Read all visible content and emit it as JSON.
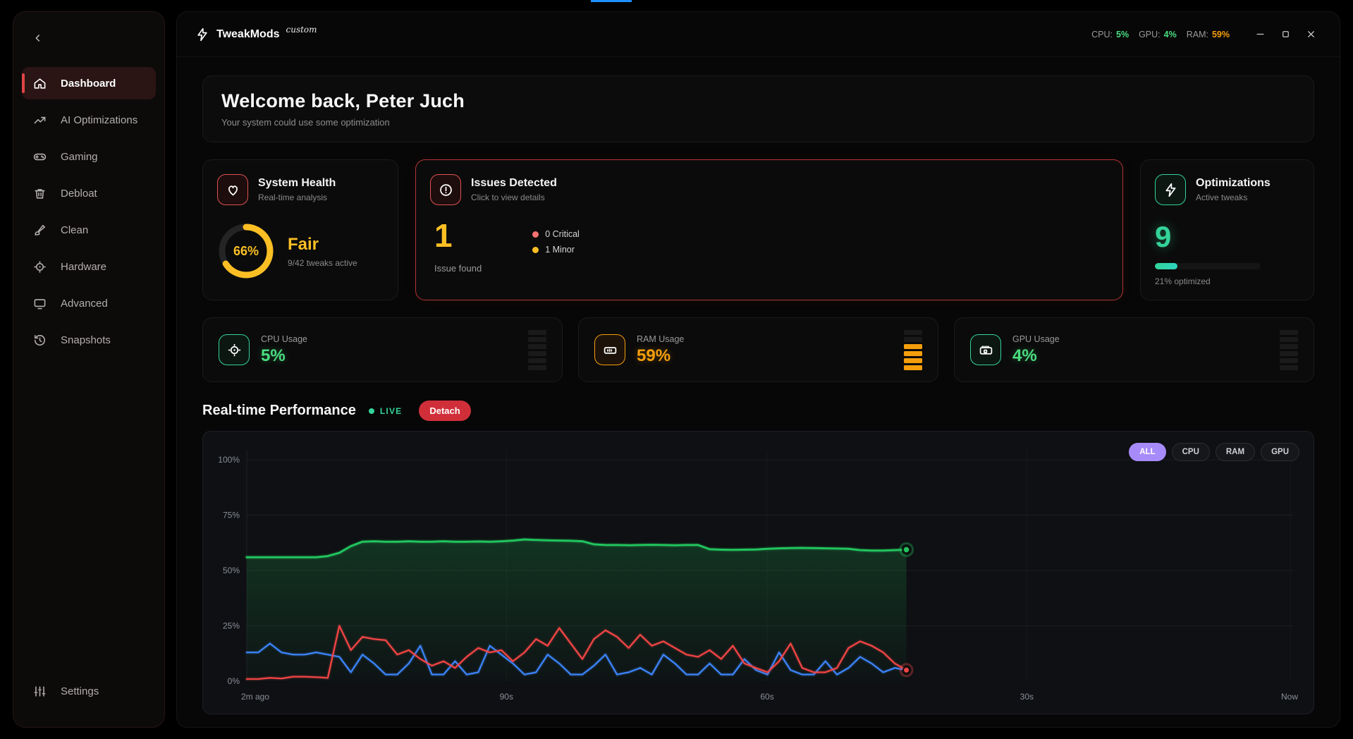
{
  "titlebar": {
    "app_name": "TweakMods",
    "app_badge": "custom",
    "stats": [
      {
        "label": "CPU:",
        "value": "5%",
        "color": "#4ade80"
      },
      {
        "label": "GPU:",
        "value": "4%",
        "color": "#4ade80"
      },
      {
        "label": "RAM:",
        "value": "59%",
        "color": "#f59e0b"
      }
    ]
  },
  "sidebar": {
    "items": [
      {
        "label": "Dashboard",
        "icon": "home-icon",
        "active": true
      },
      {
        "label": "AI Optimizations",
        "icon": "trending-up-icon",
        "active": false
      },
      {
        "label": "Gaming",
        "icon": "gamepad-icon",
        "active": false
      },
      {
        "label": "Debloat",
        "icon": "trash-icon",
        "active": false
      },
      {
        "label": "Clean",
        "icon": "brush-icon",
        "active": false
      },
      {
        "label": "Hardware",
        "icon": "crosshair-icon",
        "active": false
      },
      {
        "label": "Advanced",
        "icon": "monitor-icon",
        "active": false
      },
      {
        "label": "Snapshots",
        "icon": "history-icon",
        "active": false
      }
    ],
    "settings_label": "Settings"
  },
  "welcome": {
    "title": "Welcome back, Peter Juch",
    "subtitle": "Your system could use some optimization"
  },
  "cards": {
    "system_health": {
      "title": "System Health",
      "subtitle": "Real-time analysis",
      "percent": "66%",
      "percent_value": 66,
      "rating": "Fair",
      "detail": "9/42 tweaks active",
      "ring_color": "#fbbf24"
    },
    "issues": {
      "title": "Issues Detected",
      "subtitle": "Click to view details",
      "count": "1",
      "count_label": "Issue found",
      "legend": [
        {
          "dot": "#f87171",
          "label": "0 Critical"
        },
        {
          "dot": "#fbbf24",
          "label": "1 Minor"
        }
      ]
    },
    "optimizations": {
      "title": "Optimizations",
      "subtitle": "Active tweaks",
      "count": "9",
      "progress_percent": 21,
      "detail": "21% optimized"
    }
  },
  "usage_cards": [
    {
      "label": "CPU Usage",
      "value": "5%",
      "color": "#4ade80",
      "icon": "cpu-icon",
      "tile": "tile-green",
      "lit_segments": 0,
      "lit_color": "#4ade80"
    },
    {
      "label": "RAM Usage",
      "value": "59%",
      "color": "#f59e0b",
      "icon": "ram-icon",
      "tile": "tile-orange",
      "lit_segments": 4,
      "lit_color": "#f59e0b"
    },
    {
      "label": "GPU Usage",
      "value": "4%",
      "color": "#4ade80",
      "icon": "gpu-icon",
      "tile": "tile-green",
      "lit_segments": 0,
      "lit_color": "#4ade80"
    }
  ],
  "performance": {
    "title": "Real-time Performance",
    "live_label": "LIVE",
    "detach_label": "Detach",
    "filters": [
      {
        "label": "ALL",
        "active": true
      },
      {
        "label": "CPU",
        "active": false
      },
      {
        "label": "RAM",
        "active": false
      },
      {
        "label": "GPU",
        "active": false
      }
    ]
  },
  "chart_data": {
    "type": "line",
    "title": "Real-time Performance",
    "ylim": [
      0,
      100
    ],
    "y_ticks": [
      0,
      25,
      50,
      75,
      100
    ],
    "y_tick_labels": [
      "0%",
      "25%",
      "50%",
      "75%",
      "100%"
    ],
    "x_ticks": [
      {
        "f": 0.0,
        "label": "2m ago"
      },
      {
        "f": 0.248,
        "label": "90s"
      },
      {
        "f": 0.497,
        "label": "60s"
      },
      {
        "f": 0.745,
        "label": "30s"
      },
      {
        "f": 0.997,
        "label": "Now"
      }
    ],
    "x_end_fraction": 0.63,
    "grid": true,
    "legend_position": "none",
    "series": [
      {
        "name": "RAM",
        "color": "#22c55e",
        "fill": true,
        "values": [
          56,
          56,
          56,
          56,
          56,
          56,
          56,
          56.5,
          58,
          61,
          63,
          63.2,
          63,
          63,
          63.2,
          63,
          63,
          63.2,
          63,
          63,
          63.1,
          63,
          63.2,
          63.5,
          64,
          63.8,
          63.6,
          63.5,
          63.4,
          63.2,
          61.8,
          61.5,
          61.5,
          61.4,
          61.5,
          61.6,
          61.5,
          61.4,
          61.5,
          61.5,
          59.6,
          59.4,
          59.3,
          59.4,
          59.5,
          59.8,
          60,
          60.1,
          60.2,
          60.1,
          60,
          59.9,
          59.8,
          59.2,
          59,
          59,
          59.2,
          59.4
        ]
      },
      {
        "name": "CPU",
        "color": "#ef4444",
        "fill": false,
        "values": [
          1,
          1,
          1.5,
          1.2,
          2,
          2,
          1.8,
          1.5,
          25,
          14,
          20,
          19,
          18.5,
          12,
          14,
          10,
          7,
          9,
          6,
          11,
          15,
          13,
          14,
          9,
          13,
          19,
          16,
          24,
          17,
          10,
          19,
          23,
          20,
          15,
          21,
          16,
          18,
          15,
          12,
          11,
          14,
          10,
          16,
          8,
          6,
          4,
          9,
          17,
          6,
          4,
          4,
          6,
          15,
          18,
          16,
          13,
          8,
          5
        ]
      },
      {
        "name": "GPU",
        "color": "#3b82f6",
        "fill": false,
        "values": [
          13,
          13,
          17,
          13,
          12,
          12,
          13,
          12,
          11,
          4,
          12,
          8,
          3,
          3,
          8,
          16,
          3,
          3,
          9,
          3,
          4,
          16,
          12,
          8,
          3,
          4,
          12,
          8,
          3,
          3,
          7,
          12,
          3,
          4,
          6,
          3,
          12,
          8,
          3,
          3,
          8,
          3,
          3,
          10,
          5,
          3,
          13,
          5,
          3,
          3,
          9,
          3,
          6,
          11,
          8,
          4,
          6,
          5
        ]
      }
    ]
  }
}
